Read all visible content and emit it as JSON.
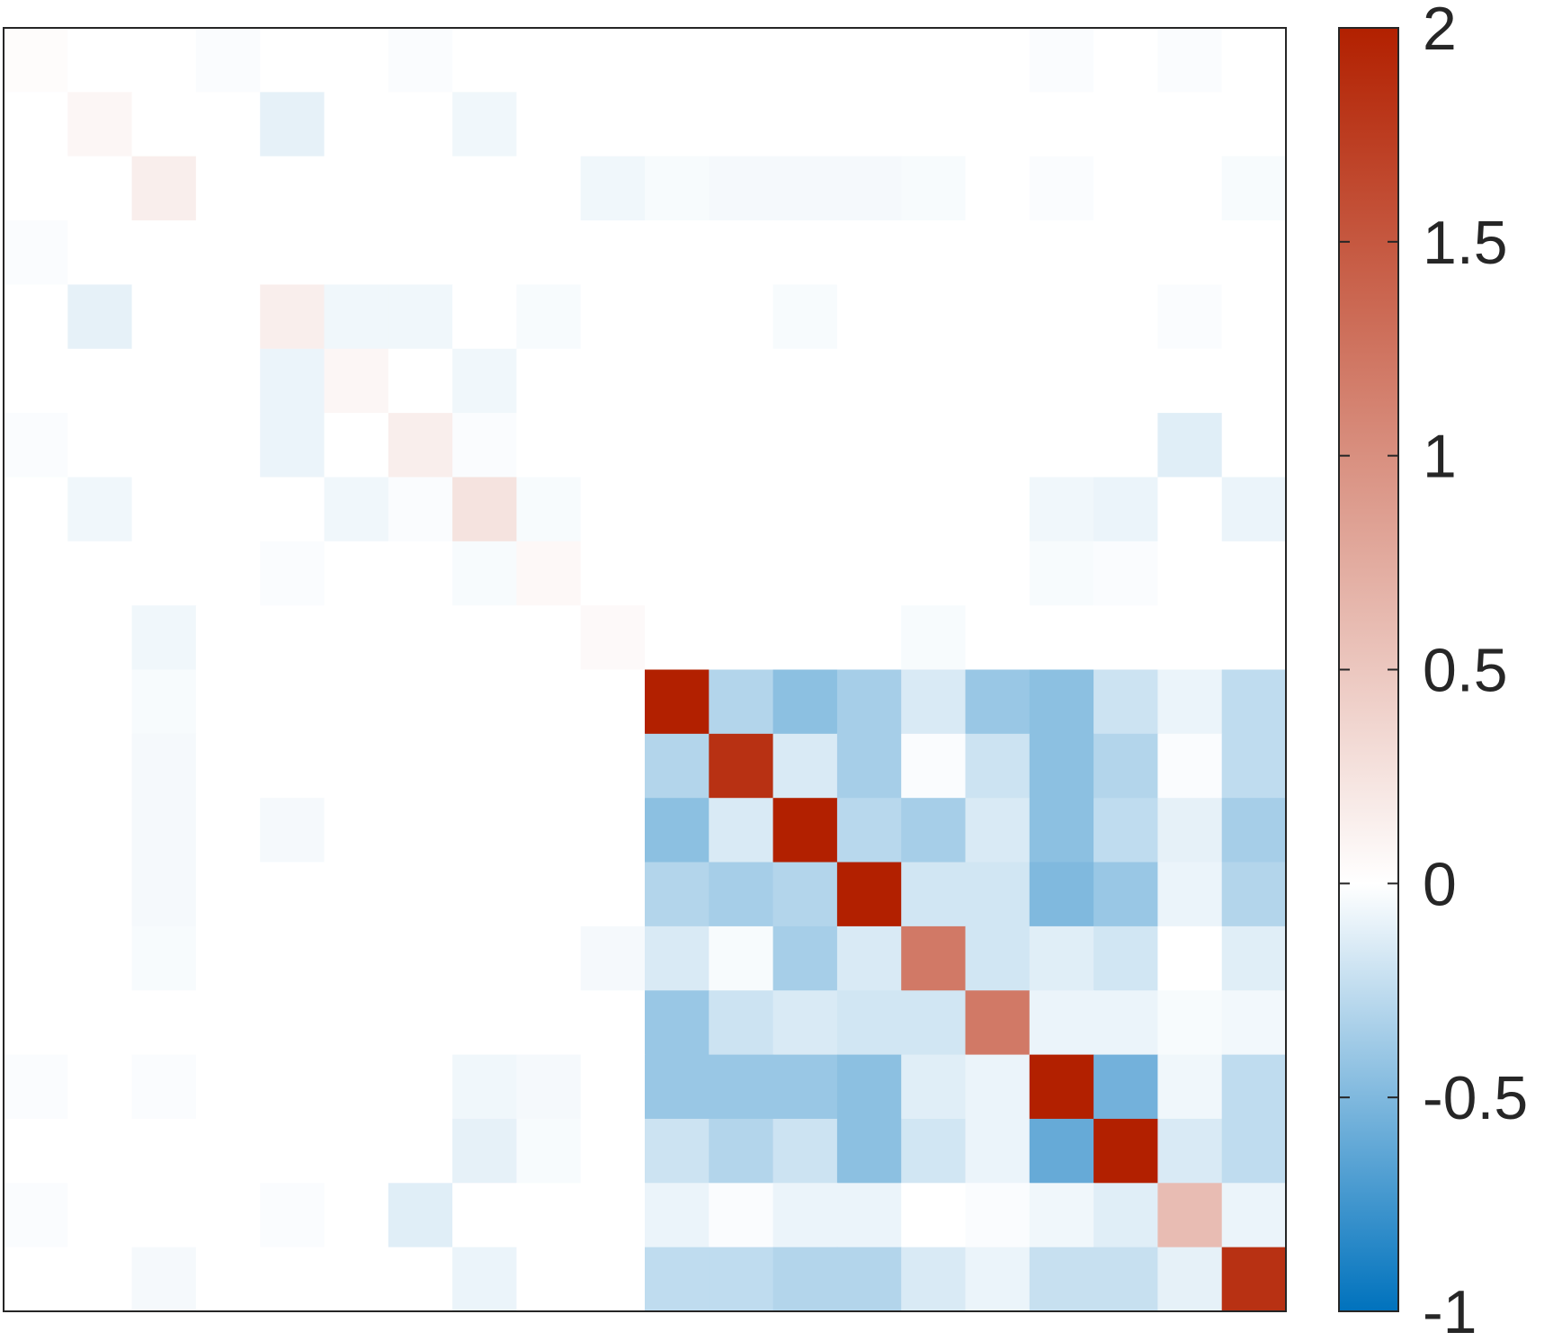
{
  "chart_data": {
    "type": "heatmap",
    "rows": 20,
    "cols": 20,
    "colorbar": {
      "min": -1,
      "max": 2,
      "ticks": [
        2,
        1.5,
        1,
        0.5,
        0,
        -0.5,
        -1
      ],
      "tick_labels": [
        "2",
        "1.5",
        "1",
        "0.5",
        "0",
        "-0.5",
        "-1"
      ],
      "colors": {
        "max": "#b22000",
        "zero": "#ffffff",
        "min": "#0072bd"
      }
    },
    "grid": false,
    "legend": "colorbar-right",
    "values": [
      [
        0.03,
        0,
        0,
        -0.02,
        0,
        0,
        -0.02,
        0,
        0,
        0,
        0,
        0,
        0,
        0,
        0,
        0,
        -0.02,
        0,
        -0.02,
        0
      ],
      [
        0,
        0.08,
        0,
        0,
        -0.1,
        0,
        0,
        -0.06,
        0,
        0,
        0,
        0,
        0,
        0,
        0,
        0,
        0,
        0,
        0,
        0
      ],
      [
        0,
        0,
        0.15,
        0,
        0,
        0,
        0,
        0,
        0,
        -0.06,
        -0.03,
        -0.04,
        -0.04,
        -0.04,
        -0.03,
        0,
        -0.02,
        0,
        0,
        -0.03
      ],
      [
        -0.02,
        0,
        0,
        0,
        0,
        0,
        0,
        0,
        0,
        0,
        0,
        0,
        0,
        0,
        0,
        0,
        0,
        0,
        0,
        0
      ],
      [
        0,
        -0.1,
        0,
        0,
        0.15,
        -0.06,
        -0.06,
        0,
        -0.03,
        0,
        0,
        0,
        -0.03,
        0,
        0,
        0,
        0,
        0,
        -0.02,
        0
      ],
      [
        0,
        0,
        0,
        0,
        -0.08,
        0.08,
        0,
        -0.06,
        0,
        0,
        0,
        0,
        0,
        0,
        0,
        0,
        0,
        0,
        0,
        0
      ],
      [
        -0.02,
        0,
        0,
        0,
        -0.08,
        0,
        0.15,
        -0.02,
        0,
        0,
        0,
        0,
        0,
        0,
        0,
        0,
        0,
        0,
        -0.12,
        0
      ],
      [
        0,
        -0.06,
        0,
        0,
        0,
        -0.06,
        -0.02,
        0.25,
        -0.03,
        0,
        0,
        0,
        0,
        0,
        0,
        0,
        -0.06,
        -0.08,
        0,
        -0.08
      ],
      [
        0,
        0,
        0,
        0,
        -0.02,
        0,
        0,
        -0.03,
        0.06,
        0,
        0,
        0,
        0,
        0,
        0,
        0,
        -0.03,
        -0.02,
        0,
        0
      ],
      [
        0,
        0,
        -0.06,
        0,
        0,
        0,
        0,
        0,
        0,
        0.05,
        0,
        0,
        0,
        0,
        -0.03,
        0,
        0,
        0,
        0,
        0
      ],
      [
        0,
        0,
        -0.03,
        0,
        0,
        0,
        0,
        0,
        0,
        0,
        2.0,
        -0.3,
        -0.45,
        -0.35,
        -0.15,
        -0.4,
        -0.45,
        -0.2,
        -0.08,
        -0.25
      ],
      [
        0,
        0,
        -0.04,
        0,
        0,
        0,
        0,
        0,
        0,
        0,
        -0.3,
        1.85,
        -0.15,
        -0.35,
        -0.02,
        -0.2,
        -0.45,
        -0.3,
        -0.02,
        -0.25
      ],
      [
        0,
        0,
        -0.04,
        0,
        -0.04,
        0,
        0,
        0,
        0,
        0,
        -0.45,
        -0.15,
        2.0,
        -0.28,
        -0.35,
        -0.15,
        -0.45,
        -0.25,
        -0.1,
        -0.35
      ],
      [
        0,
        0,
        -0.04,
        0,
        0,
        0,
        0,
        0,
        0,
        0,
        -0.3,
        -0.35,
        -0.3,
        2.0,
        -0.18,
        -0.18,
        -0.5,
        -0.4,
        -0.08,
        -0.3
      ],
      [
        0,
        0,
        -0.03,
        0,
        0,
        0,
        0,
        0,
        0,
        -0.04,
        -0.15,
        -0.03,
        -0.35,
        -0.15,
        1.2,
        -0.18,
        -0.12,
        -0.18,
        0,
        -0.12
      ],
      [
        0,
        0,
        0,
        0,
        0,
        0,
        0,
        0,
        0,
        0,
        -0.4,
        -0.2,
        -0.15,
        -0.18,
        -0.18,
        1.2,
        -0.08,
        -0.08,
        -0.03,
        -0.05
      ],
      [
        -0.02,
        0,
        -0.02,
        0,
        0,
        0,
        0,
        -0.06,
        -0.04,
        0,
        -0.4,
        -0.4,
        -0.4,
        -0.45,
        -0.12,
        -0.08,
        2.0,
        -0.55,
        -0.06,
        -0.25
      ],
      [
        0,
        0,
        0,
        0,
        0,
        0,
        0,
        -0.1,
        -0.03,
        0,
        -0.2,
        -0.3,
        -0.2,
        -0.45,
        -0.18,
        -0.08,
        -0.6,
        2.0,
        -0.15,
        -0.25
      ],
      [
        -0.02,
        0,
        0,
        0,
        -0.02,
        0,
        -0.12,
        0,
        0,
        0,
        -0.08,
        -0.02,
        -0.08,
        -0.08,
        0,
        -0.02,
        -0.06,
        -0.12,
        0.6,
        -0.08
      ],
      [
        0,
        0,
        -0.04,
        0,
        0,
        0,
        0,
        -0.08,
        0,
        0,
        -0.25,
        -0.25,
        -0.3,
        -0.3,
        -0.15,
        -0.08,
        -0.22,
        -0.22,
        -0.1,
        1.85
      ]
    ]
  }
}
